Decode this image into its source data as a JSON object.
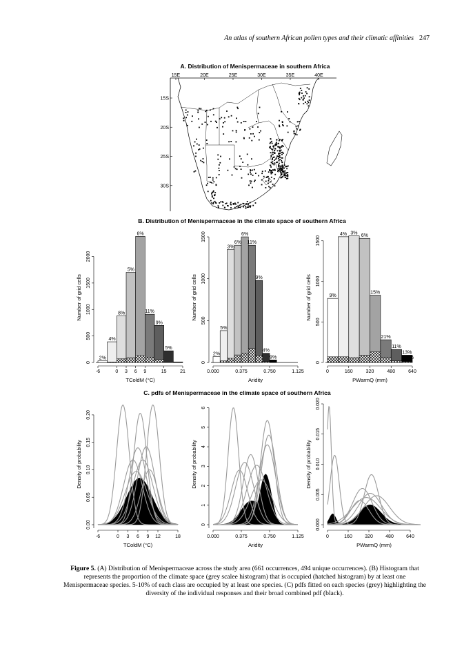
{
  "header": {
    "running_title": "An atlas of southern African pollen types and their climatic affinities",
    "page_number": "247"
  },
  "panel_a": {
    "title": "A. Distribution of Menispermaceae in southern Africa",
    "lon_labels": [
      "15E",
      "20E",
      "25E",
      "30E",
      "35E",
      "40E"
    ],
    "lat_labels": [
      "15S",
      "20S",
      "25S",
      "30S"
    ]
  },
  "panel_b": {
    "title": "B. Distribution of Menispermaceae in the climate space of southern Africa"
  },
  "panel_c": {
    "title": "C. pdfs of Menispermaceae in the climate space of southern Africa"
  },
  "chart_data": [
    {
      "id": "b1",
      "type": "bar",
      "xlabel": "TColdM (°C)",
      "ylabel": "Number of grid cells",
      "bin_edges": [
        -6,
        -3,
        0,
        3,
        6,
        9,
        12,
        15,
        18,
        21
      ],
      "x_ticks": [
        -6,
        0,
        3,
        6,
        9,
        15,
        21
      ],
      "y_ticks": [
        0,
        500,
        1000,
        1500,
        2000
      ],
      "ylim": [
        0,
        2450
      ],
      "values": [
        30,
        390,
        880,
        1700,
        2380,
        910,
        700,
        220,
        10
      ],
      "occupied": [
        0,
        10,
        70,
        90,
        130,
        100,
        60,
        0,
        0
      ],
      "percent_labels": [
        "2%",
        "4%",
        "8%",
        "5%",
        "6%",
        "11%",
        "9%",
        "5%",
        ""
      ],
      "shades": [
        "#ffffff",
        "#efefef",
        "#dedede",
        "#c2c2c2",
        "#a3a3a3",
        "#7a7a7a",
        "#5e5e5e",
        "#2e2e2e",
        "#000000"
      ]
    },
    {
      "id": "b2",
      "type": "bar",
      "xlabel": "Aridity",
      "ylabel": "Number of grid cells",
      "bin_edges": [
        0,
        0.0937,
        0.1875,
        0.2812,
        0.375,
        0.4687,
        0.5625,
        0.6562,
        0.75,
        0.8437,
        0.9375,
        1.0312,
        1.125
      ],
      "x_ticks": [
        0.0,
        0.375,
        0.75,
        1.125
      ],
      "x_tick_labels": [
        "0.000",
        "0.375",
        "0.750",
        "1.125"
      ],
      "y_ticks": [
        0,
        500,
        1000,
        1500
      ],
      "ylim": [
        0,
        1550
      ],
      "values": [
        70,
        380,
        1350,
        1400,
        1500,
        1400,
        980,
        110,
        30,
        0,
        0,
        0
      ],
      "occupied": [
        0,
        20,
        50,
        90,
        110,
        170,
        80,
        10,
        0,
        0,
        0,
        0
      ],
      "percent_labels": [
        "2%",
        "5%",
        "3%",
        "6%",
        "6%",
        "11%",
        "9%",
        "4%",
        "9%",
        "",
        "",
        ""
      ],
      "shades": [
        "#ffffff",
        "#efefef",
        "#dedede",
        "#c2c2c2",
        "#a3a3a3",
        "#7a7a7a",
        "#5e5e5e",
        "#2e2e2e",
        "#000000",
        "#000000",
        "#000000",
        "#000000"
      ]
    },
    {
      "id": "b3",
      "type": "bar",
      "xlabel": "PWarmQ (mm)",
      "ylabel": "Number of grid cells",
      "bin_edges": [
        0,
        80,
        160,
        240,
        320,
        400,
        480,
        560,
        640
      ],
      "x_ticks": [
        0,
        160,
        320,
        480,
        640
      ],
      "y_ticks": [
        0,
        500,
        1000,
        1500
      ],
      "ylim": [
        0,
        1600
      ],
      "values": [
        790,
        1550,
        1560,
        1530,
        830,
        280,
        160,
        90
      ],
      "occupied": [
        70,
        70,
        60,
        90,
        130,
        60,
        20,
        10
      ],
      "percent_labels": [
        "9%",
        "4%",
        "3%",
        "6%",
        "15%",
        "21%",
        "11%",
        "13%"
      ],
      "extra_label": "12%",
      "shades": [
        "#ffffff",
        "#efefef",
        "#dedede",
        "#c2c2c2",
        "#a3a3a3",
        "#7a7a7a",
        "#5e5e5e",
        "#000000"
      ]
    },
    {
      "id": "c1",
      "type": "line",
      "xlabel": "TColdM (°C)",
      "ylabel": "Density of probability",
      "xlim": [
        -6,
        18
      ],
      "ylim": [
        0,
        0.22
      ],
      "x_ticks": [
        -6,
        0,
        3,
        6,
        9,
        12,
        18
      ],
      "y_ticks": [
        0.0,
        0.05,
        0.1,
        0.15,
        0.2
      ],
      "y_tick_labels": [
        "0.00",
        "0.05",
        "0.10",
        "0.15",
        "0.20"
      ],
      "species": [
        {
          "mu": 1.5,
          "sigma": 1.9,
          "peak": 0.218
        },
        {
          "mu": 6.7,
          "sigma": 2.0,
          "peak": 0.203
        },
        {
          "mu": 10.5,
          "sigma": 1.9,
          "peak": 0.218
        },
        {
          "mu": 6.0,
          "sigma": 2.6,
          "peak": 0.14
        },
        {
          "mu": 8.5,
          "sigma": 2.6,
          "peak": 0.142
        },
        {
          "mu": 7.5,
          "sigma": 3.0,
          "peak": 0.118
        },
        {
          "mu": 4.5,
          "sigma": 2.8,
          "peak": 0.118
        },
        {
          "mu": 9.5,
          "sigma": 2.5,
          "peak": 0.1
        },
        {
          "mu": 5.5,
          "sigma": 3.3,
          "peak": 0.097
        }
      ],
      "combined": {
        "mu": 6.5,
        "sigma": 3.8,
        "peak": 0.085
      }
    },
    {
      "id": "c2",
      "type": "line",
      "xlabel": "Aridity",
      "ylabel": "Density of probability",
      "xlim": [
        0,
        1.125
      ],
      "ylim": [
        0,
        6.2
      ],
      "x_ticks": [
        0.0,
        0.375,
        0.75,
        1.125
      ],
      "x_tick_labels": [
        "0.000",
        "0.375",
        "0.750",
        "1.125"
      ],
      "y_ticks": [
        0,
        1,
        2,
        3,
        4,
        5,
        6
      ],
      "species": [
        {
          "mu": 0.27,
          "sigma": 0.07,
          "peak": 6.0
        },
        {
          "mu": 0.72,
          "sigma": 0.09,
          "peak": 5.35
        },
        {
          "mu": 0.74,
          "sigma": 0.1,
          "peak": 4.6
        },
        {
          "mu": 0.72,
          "sigma": 0.11,
          "peak": 4.1
        },
        {
          "mu": 0.5,
          "sigma": 0.1,
          "peak": 3.6
        },
        {
          "mu": 0.42,
          "sigma": 0.12,
          "peak": 3.2
        },
        {
          "mu": 0.58,
          "sigma": 0.13,
          "peak": 3.05
        },
        {
          "mu": 0.35,
          "sigma": 0.11,
          "peak": 2.8
        },
        {
          "mu": 0.64,
          "sigma": 0.14,
          "peak": 2.3
        }
      ],
      "combined": {
        "mu": 0.7,
        "sigma": 0.075,
        "peak": 2.5
      },
      "combined_secondary": {
        "mu": 0.5,
        "sigma": 0.13,
        "peak": 1.2
      }
    },
    {
      "id": "c3",
      "type": "line",
      "xlabel": "PWarmQ (mm)",
      "ylabel": "Density of probability",
      "xlim": [
        0,
        720
      ],
      "ylim": [
        0,
        0.02
      ],
      "x_ticks": [
        0,
        160,
        320,
        480,
        640
      ],
      "y_ticks": [
        0.0,
        0.005,
        0.01,
        0.015,
        0.02
      ],
      "y_tick_labels": [
        "0.000",
        "0.005",
        "0.010",
        "0.015",
        "0.020"
      ],
      "species": [
        {
          "mu": 12,
          "sigma": 18,
          "peak": 0.0197
        },
        {
          "mu": 55,
          "sigma": 35,
          "peak": 0.0115
        },
        {
          "mu": 340,
          "sigma": 55,
          "peak": 0.0083
        },
        {
          "mu": 270,
          "sigma": 75,
          "peak": 0.006
        },
        {
          "mu": 330,
          "sigma": 90,
          "peak": 0.0052
        },
        {
          "mu": 380,
          "sigma": 100,
          "peak": 0.0048
        },
        {
          "mu": 300,
          "sigma": 110,
          "peak": 0.0045
        },
        {
          "mu": 250,
          "sigma": 70,
          "peak": 0.004
        }
      ],
      "combined": {
        "mu": 330,
        "sigma": 85,
        "peak": 0.0033
      },
      "combined_secondary": {
        "mu": 40,
        "sigma": 25,
        "peak": 0.0018
      }
    }
  ],
  "caption": {
    "label": "Figure 5.",
    "text": "(A) Distribution of Menispermaceae across the study area (661 occurrences, 494 unique occurrences). (B) Histogram that represents the proportion of the climate space (grey scalee histogram) that is occupied (hatched histogram) by at least one Menispermaceae species. 5-10% of each class are occupied by at least one species. (C) pdfs fitted on each species (grey) highlighting the diversity of the individual responses and their broad combined pdf (black)."
  }
}
